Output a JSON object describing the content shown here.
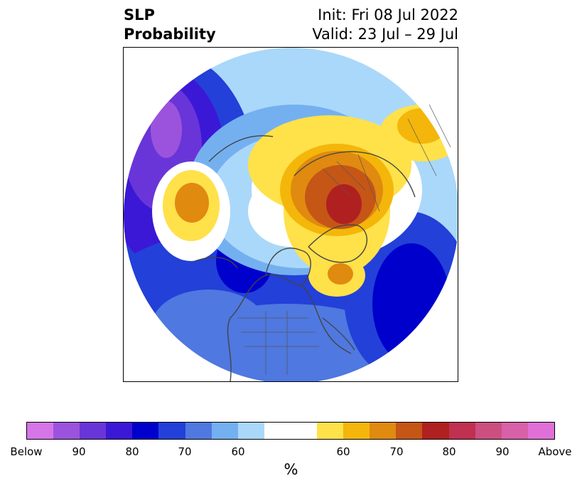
{
  "title": {
    "variable": "SLP",
    "kind": "Probability",
    "init": "Init: Fri 08 Jul 2022",
    "valid": "Valid: 23 Jul – 29 Jul"
  },
  "map": {
    "projection": "north-polar-stereographic",
    "features": [
      "coastlines",
      "country-borders",
      "us-state-borders"
    ],
    "anomalies": [
      {
        "region": "north-pacific",
        "category": "below",
        "level": "80-90"
      },
      {
        "region": "aleutians-bering",
        "category": "above",
        "level": "60-70"
      },
      {
        "region": "scandinavia-russia",
        "category": "above",
        "level": "60-70"
      },
      {
        "region": "greenland",
        "category": "above",
        "level": "80-90"
      },
      {
        "region": "eastern-canada",
        "category": "above",
        "level": "60-70"
      },
      {
        "region": "north-atlantic",
        "category": "below",
        "level": "70-80"
      },
      {
        "region": "western-north-america",
        "category": "below",
        "level": "60-80"
      }
    ]
  },
  "colorbar": {
    "colors": [
      "#d575e8",
      "#9b53dd",
      "#6a35d8",
      "#3b18d6",
      "#0000cd",
      "#2340d8",
      "#4f78e0",
      "#74b0f0",
      "#aad8fa",
      "#ffffff",
      "#ffffff",
      "#ffe14a",
      "#f4b60a",
      "#e08a10",
      "#c55616",
      "#b02020",
      "#c03050",
      "#cc4f80",
      "#d860a8",
      "#e070d8"
    ],
    "tick_labels": [
      "Below",
      "90",
      "80",
      "70",
      "60",
      "60",
      "70",
      "80",
      "90",
      "Above"
    ],
    "unit": "%"
  }
}
